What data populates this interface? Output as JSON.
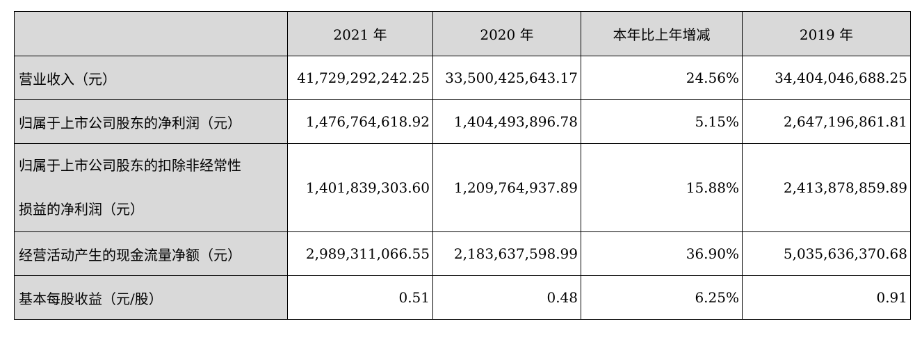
{
  "table": {
    "headers": [
      "",
      "2021 年",
      "2020 年",
      "本年比上年增减",
      "2019 年"
    ],
    "rows": [
      {
        "label": [
          "营业收入（元）"
        ],
        "values": [
          "41,729,292,242.25",
          "33,500,425,643.17",
          "24.56%",
          "34,404,046,688.25"
        ]
      },
      {
        "label": [
          "归属于上市公司股东的净利润（元）"
        ],
        "values": [
          "1,476,764,618.92",
          "1,404,493,896.78",
          "5.15%",
          "2,647,196,861.81"
        ]
      },
      {
        "label": [
          "归属于上市公司股东的扣除非经常性",
          "损益的净利润（元）"
        ],
        "values": [
          "1,401,839,303.60",
          "1,209,764,937.89",
          "15.88%",
          "2,413,878,859.89"
        ]
      },
      {
        "label": [
          "经营活动产生的现金流量净额（元）"
        ],
        "values": [
          "2,989,311,066.55",
          "2,183,637,598.99",
          "36.90%",
          "5,035,636,370.68"
        ]
      },
      {
        "label": [
          "基本每股收益（元/股）"
        ],
        "values": [
          "0.51",
          "0.48",
          "6.25%",
          "0.91"
        ]
      }
    ]
  },
  "colors": {
    "shade": "#d9d9d9",
    "border": "#000000",
    "background": "#ffffff"
  }
}
